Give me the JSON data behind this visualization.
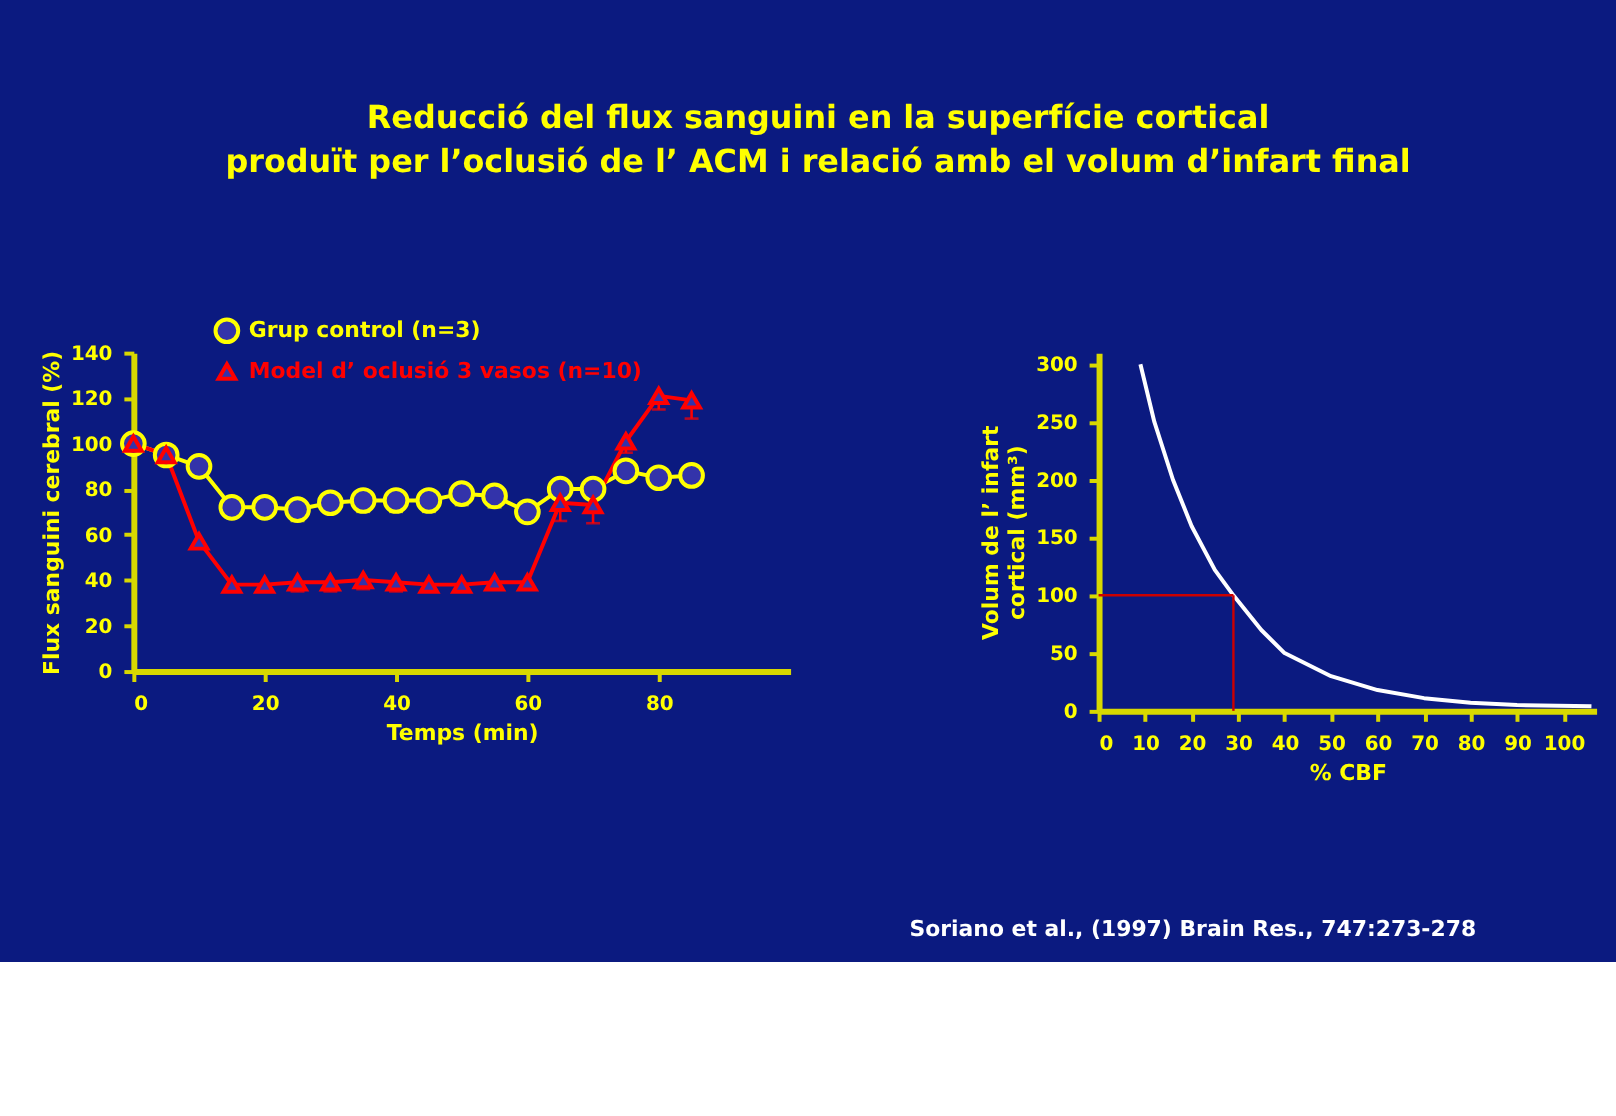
{
  "chart_data": [
    {
      "type": "line",
      "title": "Reducció del flux sanguini en la superfície cortical\nproduït per l’oclusió de l’ ACM i relació amb el volum d’infart final",
      "xlabel": "Temps (min)",
      "ylabel": "Flux sanguini cerebral (%)",
      "x": [
        0,
        5,
        10,
        15,
        20,
        25,
        30,
        35,
        40,
        45,
        50,
        55,
        60,
        65,
        70,
        75,
        80,
        85
      ],
      "series": [
        {
          "name": "Grup control (n=3)",
          "color": "#ffff00",
          "marker": "circle",
          "values": [
            100,
            95,
            90,
            72,
            72,
            71,
            74,
            75,
            75,
            75,
            78,
            77,
            70,
            80,
            80,
            88,
            85,
            86
          ],
          "errors": [
            null,
            null,
            null,
            null,
            null,
            [
              66,
              71
            ],
            [
              70,
              74
            ],
            [
              70,
              75
            ],
            [
              70,
              75
            ],
            [
              70,
              75
            ],
            [
              73,
              78
            ],
            [
              72,
              77
            ],
            null,
            null,
            null,
            [
              86,
              88
            ],
            [
              82,
              85
            ],
            null
          ]
        },
        {
          "name": "Model d’ oclusió 3 vasos (n=10)",
          "color": "#ff0000",
          "marker": "triangle",
          "values": [
            100,
            95,
            57,
            38,
            38,
            39,
            39,
            40,
            39,
            38,
            38,
            39,
            39,
            74,
            73,
            101,
            121,
            119
          ],
          "errors": [
            null,
            null,
            [
              55,
              59
            ],
            [
              36,
              40
            ],
            [
              35,
              40
            ],
            [
              35,
              42
            ],
            [
              35,
              42
            ],
            [
              36,
              43
            ],
            [
              35,
              42
            ],
            [
              36,
              40
            ],
            [
              36,
              40
            ],
            [
              36,
              41
            ],
            [
              36,
              41
            ],
            [
              66,
              76
            ],
            [
              65,
              75
            ],
            [
              96,
              101
            ],
            [
              115,
              123
            ],
            [
              111,
              120
            ]
          ]
        }
      ],
      "xlim": [
        0,
        100
      ],
      "xticks": [
        0,
        20,
        40,
        60,
        80
      ],
      "ylim": [
        0,
        140
      ],
      "yticks": [
        0,
        20,
        40,
        60,
        80,
        100,
        120,
        140
      ],
      "grid": false,
      "legend": "top"
    },
    {
      "type": "line",
      "xlabel": "% CBF",
      "ylabel": "Volum de l’ infart cortical (mm³)",
      "x": [
        9,
        12,
        16,
        20,
        25,
        29,
        35,
        40,
        50,
        60,
        70,
        80,
        90,
        106
      ],
      "series": [
        {
          "color": "#ffffff",
          "values": [
            300,
            250,
            200,
            160,
            122,
            100,
            70,
            50,
            30,
            18,
            11,
            7,
            5,
            4
          ]
        }
      ],
      "ref_lines": [
        {
          "axis": "y",
          "value": 100,
          "color": "#cc0000"
        },
        {
          "axis": "x",
          "value": 29,
          "color": "#cc0000"
        }
      ],
      "xlim": [
        0,
        107
      ],
      "xticks": [
        0,
        10,
        20,
        30,
        40,
        50,
        60,
        70,
        80,
        90,
        100
      ],
      "ylim": [
        0,
        310
      ],
      "yticks": [
        0,
        50,
        100,
        150,
        200,
        250,
        300
      ],
      "grid": false,
      "annotations": [
        "Soriano et al., (1997) Brain Res., 747:273-278"
      ]
    }
  ]
}
